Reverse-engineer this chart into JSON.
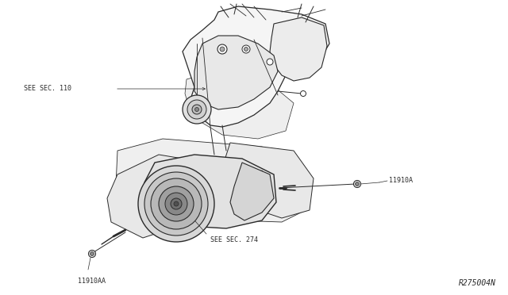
{
  "bg_color": "#ffffff",
  "diagram_id": "R275004N",
  "line_color": "#2a2a2a",
  "text_color": "#2a2a2a",
  "label_fontsize": 6.0,
  "diagram_id_fontsize": 7.0,
  "figsize": [
    6.4,
    3.72
  ],
  "dpi": 100,
  "labels": {
    "see_sec_110": "SEE SEC. 110",
    "see_sec_274": "SEE SEC. 274",
    "11910A": "11910A",
    "11910AA": "11910AA"
  },
  "annotation_line_lw": 0.5,
  "part_line_lw": 0.8
}
